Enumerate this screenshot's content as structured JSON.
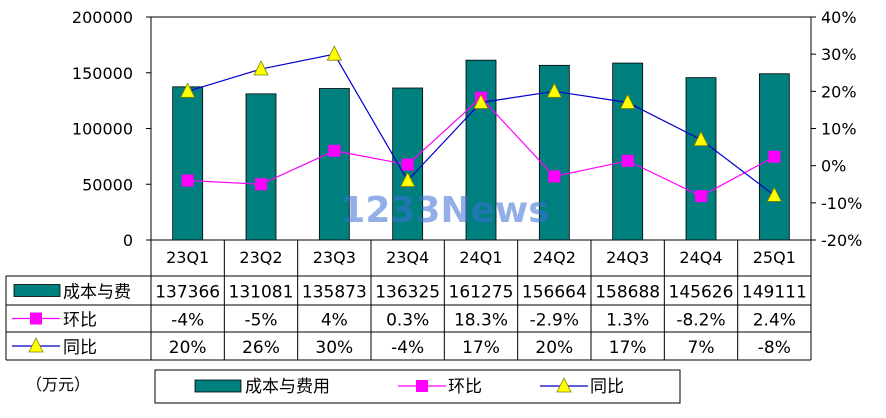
{
  "chart_data": {
    "type": "bar+line",
    "categories": [
      "23Q1",
      "23Q2",
      "23Q3",
      "23Q4",
      "24Q1",
      "24Q2",
      "24Q3",
      "24Q4",
      "25Q1"
    ],
    "left_axis": {
      "min": 0,
      "max": 200000,
      "ticks": [
        "0",
        "50000",
        "100000",
        "150000",
        "200000"
      ]
    },
    "right_axis": {
      "min": -20,
      "max": 40,
      "ticks": [
        "-20%",
        "-10%",
        "0%",
        "10%",
        "20%",
        "30%",
        "40%"
      ]
    },
    "series": [
      {
        "name": "成本与费用",
        "table_label": "成本与费",
        "values": [
          137366,
          131081,
          135873,
          136325,
          161275,
          156664,
          158688,
          145626,
          149111
        ],
        "labels": [
          "137366",
          "131081",
          "135873",
          "136325",
          "161275",
          "156664",
          "158688",
          "145626",
          "149111"
        ]
      },
      {
        "name": "环比",
        "table_label": "环比",
        "values": [
          -4,
          -5,
          4,
          0.3,
          18.3,
          -2.9,
          1.3,
          -8.2,
          2.4
        ],
        "labels": [
          "-4%",
          "-5%",
          "4%",
          "0.3%",
          "18.3%",
          "-2.9%",
          "1.3%",
          "-8.2%",
          "2.4%"
        ]
      },
      {
        "name": "同比",
        "table_label": "同比",
        "values": [
          20,
          26,
          30,
          -4,
          17,
          20,
          17,
          7,
          -8
        ],
        "labels": [
          "20%",
          "26%",
          "30%",
          "-4%",
          "17%",
          "20%",
          "17%",
          "7%",
          "-8%"
        ]
      }
    ],
    "unit": "（万元）",
    "watermark": "1233News",
    "legend_position": "bottom"
  },
  "colors": {
    "bar": "#007F7F",
    "mom": "#FF00FF",
    "yoy_line": "#0000CC",
    "yoy_marker": "#FFFF00"
  }
}
